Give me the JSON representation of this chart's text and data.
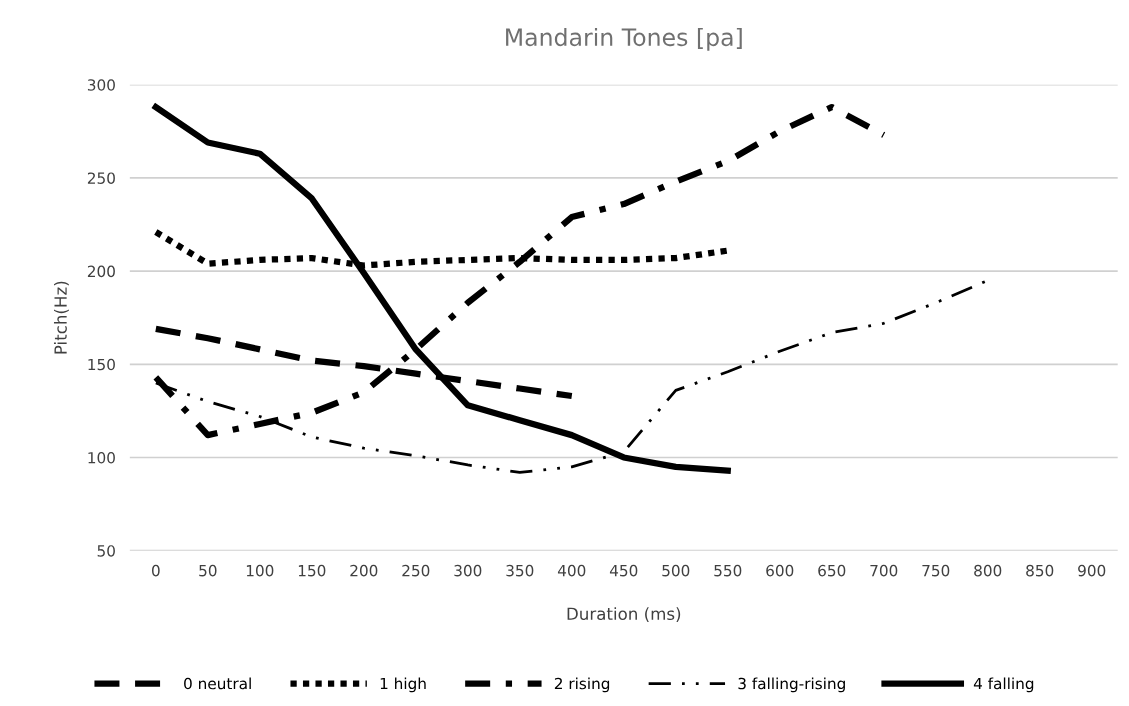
{
  "chart_data": {
    "type": "line",
    "title": "Mandarin Tones [pa]",
    "xlabel": "Duration (ms)",
    "ylabel": "Pitch(Hz)",
    "categories": [
      "0",
      "50",
      "100",
      "150",
      "200",
      "250",
      "300",
      "350",
      "400",
      "450",
      "500",
      "550",
      "600",
      "650",
      "700",
      "750",
      "800",
      "850",
      "900"
    ],
    "ylim": [
      50,
      300
    ],
    "yticks": [
      50,
      100,
      150,
      200,
      250,
      300
    ],
    "grid": "y",
    "legend": "bottom",
    "marker": "none",
    "series": [
      {
        "name": "0 neutral",
        "color": "#000000",
        "line_style": "dashed",
        "values": [
          169,
          164,
          158,
          152,
          149,
          145,
          141,
          137,
          133,
          null,
          null,
          null,
          null,
          null,
          null,
          null,
          null,
          null,
          null
        ]
      },
      {
        "name": "1 high",
        "color": "#000000",
        "line_style": "dotted",
        "values": [
          221,
          204,
          206,
          207,
          203,
          205,
          206,
          207,
          206,
          206,
          207,
          211,
          null,
          null,
          null,
          null,
          null,
          null,
          null
        ]
      },
      {
        "name": "2 rising",
        "color": "#000000",
        "line_style": "dashdot",
        "values": [
          143,
          112,
          118,
          124,
          135,
          158,
          183,
          205,
          229,
          236,
          248,
          259,
          275,
          288,
          273,
          null,
          null,
          null,
          null
        ]
      },
      {
        "name": "3 falling-rising",
        "color": "#000000",
        "line_style": "dashdotdot",
        "values": [
          140,
          130,
          122,
          111,
          105,
          101,
          96,
          92,
          95,
          103,
          136,
          146,
          157,
          167,
          172,
          183,
          195,
          null,
          null
        ]
      },
      {
        "name": "4 falling",
        "color": "#000000",
        "line_style": "solid",
        "values": [
          288,
          269,
          263,
          239,
          199,
          158,
          128,
          120,
          112,
          100,
          95,
          93,
          null,
          null,
          null,
          null,
          null,
          null,
          null
        ]
      }
    ]
  }
}
